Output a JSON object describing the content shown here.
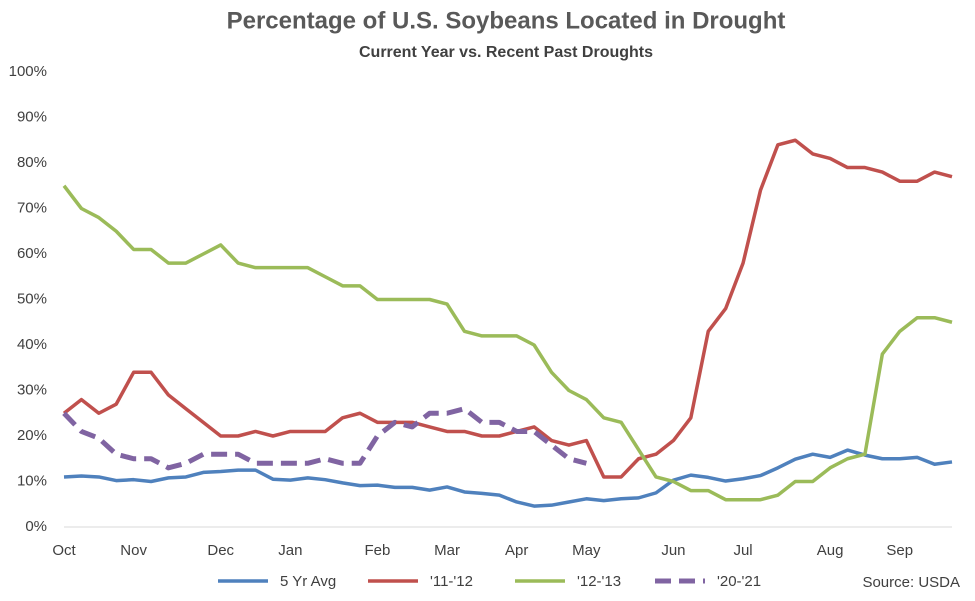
{
  "chart_data": {
    "type": "line",
    "title": "Percentage of U.S. Soybeans Located in Drought",
    "subtitle": "Current Year vs. Recent Past Droughts",
    "source": "Source: USDA",
    "categories": [
      "Oct",
      null,
      null,
      null,
      "Nov",
      null,
      null,
      null,
      null,
      "Dec",
      null,
      null,
      null,
      "Jan",
      null,
      null,
      null,
      null,
      "Feb",
      null,
      null,
      null,
      "Mar",
      null,
      null,
      null,
      "Apr",
      null,
      null,
      null,
      "May",
      null,
      null,
      null,
      null,
      "Jun",
      null,
      null,
      null,
      "Jul",
      null,
      null,
      null,
      null,
      "Aug",
      null,
      null,
      null,
      "Sep",
      null,
      null,
      null
    ],
    "ylim": [
      0,
      100
    ],
    "yticks": [
      {
        "value": 0,
        "label": "0%"
      },
      {
        "value": 10,
        "label": "10%"
      },
      {
        "value": 20,
        "label": "20%"
      },
      {
        "value": 30,
        "label": "30%"
      },
      {
        "value": 40,
        "label": "40%"
      },
      {
        "value": 50,
        "label": "50%"
      },
      {
        "value": 60,
        "label": "60%"
      },
      {
        "value": 70,
        "label": "70%"
      },
      {
        "value": 80,
        "label": "80%"
      },
      {
        "value": 90,
        "label": "90%"
      },
      {
        "value": 100,
        "label": "100%"
      }
    ],
    "grid": false,
    "legend": "bottom",
    "series": [
      {
        "name": "5 Yr Avg",
        "color": "#4f81bd",
        "values": [
          11,
          11.2,
          11,
          10.2,
          10.4,
          10,
          10.8,
          11,
          12,
          12.2,
          12.5,
          12.5,
          10.5,
          10.3,
          10.8,
          10.4,
          9.7,
          9.1,
          9.2,
          8.7,
          8.7,
          8.1,
          8.8,
          7.7,
          7.4,
          7,
          5.5,
          4.6,
          4.8,
          5.5,
          6.2,
          5.8,
          6.2,
          6.4,
          7.5,
          10.3,
          11.4,
          10.9,
          10.1,
          10.6,
          11.3,
          13,
          14.9,
          16,
          15.3,
          16.9,
          15.8,
          15,
          15,
          15.3,
          13.8,
          14.3
        ]
      },
      {
        "name": "'11-'12",
        "color": "#c0504d",
        "values": [
          25,
          28,
          25,
          27,
          34,
          34,
          29,
          26,
          23,
          20,
          20,
          21,
          20,
          21,
          21,
          21,
          24,
          25,
          23,
          23,
          23,
          22,
          21,
          21,
          20,
          20,
          21,
          22,
          19,
          18,
          19,
          11,
          11,
          15,
          16,
          19,
          24,
          43,
          48,
          58,
          74,
          84,
          85,
          82,
          81,
          79,
          79,
          78,
          76,
          76,
          78,
          77
        ]
      },
      {
        "name": "'12-'13",
        "color": "#9bbb59",
        "values": [
          75,
          70,
          68,
          65,
          61,
          61,
          58,
          58,
          60,
          62,
          58,
          57,
          57,
          57,
          57,
          55,
          53,
          53,
          50,
          50,
          50,
          50,
          49,
          43,
          42,
          42,
          42,
          40,
          34,
          30,
          28,
          24,
          23,
          17,
          11,
          10,
          8,
          8,
          6,
          6,
          6,
          7,
          10,
          10,
          13,
          15,
          16,
          38,
          43,
          46,
          46,
          45
        ]
      },
      {
        "name": "'20-'21",
        "color": "#8064a2",
        "dashed": true,
        "values": [
          25,
          21,
          19.5,
          16,
          15,
          15,
          13,
          14,
          16,
          16,
          16,
          14,
          14,
          14,
          14,
          15,
          14,
          14,
          20,
          23,
          22,
          25,
          25,
          26,
          23,
          23,
          21,
          21,
          18,
          15,
          14,
          null,
          null,
          null,
          null,
          null,
          null,
          null,
          null,
          null,
          null,
          null,
          null,
          null,
          null,
          null,
          null,
          null,
          null,
          null,
          null,
          null
        ]
      }
    ]
  }
}
